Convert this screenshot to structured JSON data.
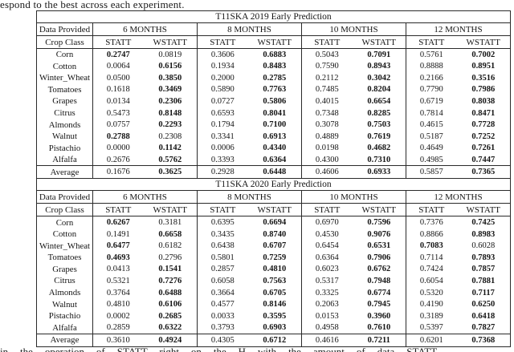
{
  "page": {
    "caption_top": "espond to the best across each experiment.",
    "caption_bottom": "in the operation of STATT right on the H with the amount of data STATT"
  },
  "table_common": {
    "data_provided_label": "Data Provided",
    "crop_class_label": "Crop Class",
    "month_headers": [
      "6 MONTHS",
      "8 MONTHS",
      "10 MONTHS",
      "12 MONTHS"
    ],
    "metric_headers": [
      "STATT",
      "WSTATT",
      "STATT",
      "WSTATT",
      "STATT",
      "WSTATT",
      "STATT",
      "WSTATT"
    ]
  },
  "tables": [
    {
      "title": "T11SKA 2019 Early Prediction",
      "rows": [
        {
          "label": "Corn",
          "values": [
            "0.2747",
            "0.0819",
            "0.3606",
            "0.6883",
            "0.5043",
            "0.7091",
            "0.5761",
            "0.7002"
          ],
          "bold": [
            1,
            0,
            0,
            1,
            0,
            1,
            0,
            1
          ]
        },
        {
          "label": "Cotton",
          "values": [
            "0.0064",
            "0.6156",
            "0.1934",
            "0.8483",
            "0.7590",
            "0.8943",
            "0.8888",
            "0.8951"
          ],
          "bold": [
            0,
            1,
            0,
            1,
            0,
            1,
            0,
            1
          ]
        },
        {
          "label": "Winter_Wheat",
          "values": [
            "0.0500",
            "0.3850",
            "0.2000",
            "0.2785",
            "0.2112",
            "0.3042",
            "0.2166",
            "0.3516"
          ],
          "bold": [
            0,
            1,
            0,
            1,
            0,
            1,
            0,
            1
          ]
        },
        {
          "label": "Tomatoes",
          "values": [
            "0.1618",
            "0.3469",
            "0.5890",
            "0.7763",
            "0.7485",
            "0.8204",
            "0.7790",
            "0.7986"
          ],
          "bold": [
            0,
            1,
            0,
            1,
            0,
            1,
            0,
            1
          ]
        },
        {
          "label": "Grapes",
          "values": [
            "0.0134",
            "0.2306",
            "0.0727",
            "0.5806",
            "0.4015",
            "0.6654",
            "0.6719",
            "0.8038"
          ],
          "bold": [
            0,
            1,
            0,
            1,
            0,
            1,
            0,
            1
          ]
        },
        {
          "label": "Citrus",
          "values": [
            "0.5473",
            "0.8148",
            "0.6593",
            "0.8041",
            "0.7348",
            "0.8285",
            "0.7814",
            "0.8471"
          ],
          "bold": [
            0,
            1,
            0,
            1,
            0,
            1,
            0,
            1
          ]
        },
        {
          "label": "Almonds",
          "values": [
            "0.0757",
            "0.2293",
            "0.1794",
            "0.7100",
            "0.3078",
            "0.7503",
            "0.4615",
            "0.7728"
          ],
          "bold": [
            0,
            1,
            0,
            1,
            0,
            1,
            0,
            1
          ]
        },
        {
          "label": "Walnut",
          "values": [
            "0.2788",
            "0.2308",
            "0.3341",
            "0.6913",
            "0.4889",
            "0.7619",
            "0.5187",
            "0.7252"
          ],
          "bold": [
            1,
            0,
            0,
            1,
            0,
            1,
            0,
            1
          ]
        },
        {
          "label": "Pistachio",
          "values": [
            "0.0000",
            "0.1142",
            "0.0006",
            "0.4340",
            "0.0198",
            "0.4682",
            "0.4649",
            "0.7261"
          ],
          "bold": [
            0,
            1,
            0,
            1,
            0,
            1,
            0,
            1
          ]
        },
        {
          "label": "Alfalfa",
          "values": [
            "0.2676",
            "0.5762",
            "0.3393",
            "0.6364",
            "0.4300",
            "0.7310",
            "0.4985",
            "0.7447"
          ],
          "bold": [
            0,
            1,
            0,
            1,
            0,
            1,
            0,
            1
          ]
        }
      ],
      "average": {
        "label": "Average",
        "values": [
          "0.1676",
          "0.3625",
          "0.2928",
          "0.6448",
          "0.4606",
          "0.6933",
          "0.5857",
          "0.7365"
        ],
        "bold": [
          0,
          1,
          0,
          1,
          0,
          1,
          0,
          1
        ]
      }
    },
    {
      "title": "T11SKA 2020 Early Prediction",
      "rows": [
        {
          "label": "Corn",
          "values": [
            "0.6267",
            "0.3181",
            "0.6395",
            "0.6694",
            "0.6970",
            "0.7596",
            "0.7376",
            "0.7425"
          ],
          "bold": [
            1,
            0,
            0,
            1,
            0,
            1,
            0,
            1
          ]
        },
        {
          "label": "Cotton",
          "values": [
            "0.1491",
            "0.6658",
            "0.3435",
            "0.8740",
            "0.4530",
            "0.9076",
            "0.8866",
            "0.8983"
          ],
          "bold": [
            0,
            1,
            0,
            1,
            0,
            1,
            0,
            1
          ]
        },
        {
          "label": "Winter_Wheat",
          "values": [
            "0.6477",
            "0.6182",
            "0.6438",
            "0.6707",
            "0.6454",
            "0.6531",
            "0.7083",
            "0.6028"
          ],
          "bold": [
            1,
            0,
            0,
            1,
            0,
            1,
            1,
            0
          ]
        },
        {
          "label": "Tomatoes",
          "values": [
            "0.4693",
            "0.2796",
            "0.5801",
            "0.7259",
            "0.6364",
            "0.7906",
            "0.7114",
            "0.7893"
          ],
          "bold": [
            1,
            0,
            0,
            1,
            0,
            1,
            0,
            1
          ]
        },
        {
          "label": "Grapes",
          "values": [
            "0.0413",
            "0.1541",
            "0.2857",
            "0.4810",
            "0.6023",
            "0.6762",
            "0.7424",
            "0.7857"
          ],
          "bold": [
            0,
            1,
            0,
            1,
            0,
            1,
            0,
            1
          ]
        },
        {
          "label": "Citrus",
          "values": [
            "0.5321",
            "0.7276",
            "0.6058",
            "0.7563",
            "0.5317",
            "0.7948",
            "0.6054",
            "0.7881"
          ],
          "bold": [
            0,
            1,
            0,
            1,
            0,
            1,
            0,
            1
          ]
        },
        {
          "label": "Almonds",
          "values": [
            "0.3764",
            "0.6488",
            "0.3664",
            "0.6705",
            "0.3325",
            "0.6774",
            "0.5320",
            "0.7117"
          ],
          "bold": [
            0,
            1,
            0,
            1,
            0,
            1,
            0,
            1
          ]
        },
        {
          "label": "Walnut",
          "values": [
            "0.4810",
            "0.6106",
            "0.4577",
            "0.8146",
            "0.2063",
            "0.7945",
            "0.4190",
            "0.6250"
          ],
          "bold": [
            0,
            1,
            0,
            1,
            0,
            1,
            0,
            1
          ]
        },
        {
          "label": "Pistachio",
          "values": [
            "0.0002",
            "0.2685",
            "0.0033",
            "0.3595",
            "0.0153",
            "0.3960",
            "0.3189",
            "0.6418"
          ],
          "bold": [
            0,
            1,
            0,
            1,
            0,
            1,
            0,
            1
          ]
        },
        {
          "label": "Alfalfa",
          "values": [
            "0.2859",
            "0.6322",
            "0.3793",
            "0.6903",
            "0.4958",
            "0.7610",
            "0.5397",
            "0.7827"
          ],
          "bold": [
            0,
            1,
            0,
            1,
            0,
            1,
            0,
            1
          ]
        }
      ],
      "average": {
        "label": "Average",
        "values": [
          "0.3610",
          "0.4924",
          "0.4305",
          "0.6712",
          "0.4616",
          "0.7211",
          "0.6201",
          "0.7368"
        ],
        "bold": [
          0,
          1,
          0,
          1,
          0,
          1,
          0,
          1
        ]
      }
    }
  ]
}
